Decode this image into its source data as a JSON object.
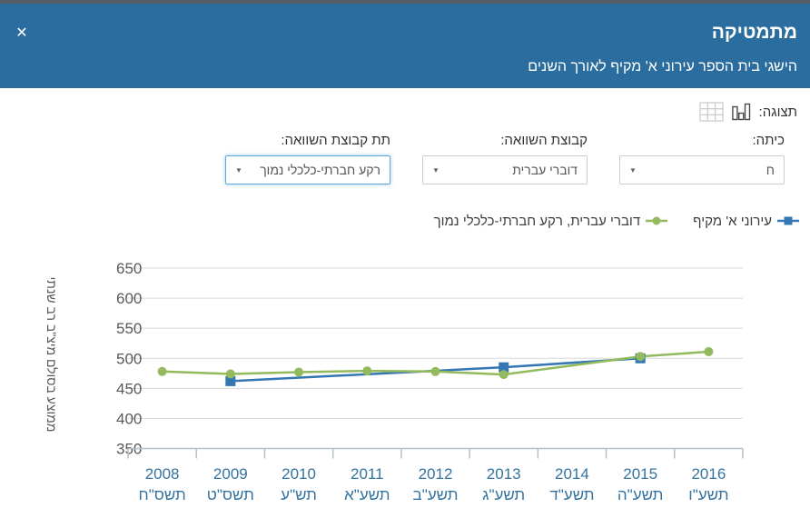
{
  "header": {
    "title": "מתמטיקה",
    "subtitle": "הישגי בית הספר עירוני א' מקיף לאורך השנים",
    "close_glyph": "✕",
    "bg_color": "#2a6d9e"
  },
  "toolbar": {
    "display_label": "תצוגה:"
  },
  "filters": [
    {
      "label": "כיתה:",
      "value": "ח",
      "arrow": "▼"
    },
    {
      "label": "קבוצת השוואה:",
      "value": "דוברי עברית",
      "arrow": "▼"
    },
    {
      "label": "תת קבוצת השוואה:",
      "value": "רקע חברתי-כלכלי נמוך",
      "arrow": "▼"
    }
  ],
  "legend": [
    {
      "label": "עירוני א' מקיף",
      "marker": "square",
      "color": "#3477b2"
    },
    {
      "label": "דוברי עברית, רקע חברתי-כלכלי נמוך",
      "marker": "circle",
      "color": "#94ba5e"
    }
  ],
  "chart_data": {
    "type": "line",
    "title": "",
    "ylabel": "ממוצע בסולם מיצ\"ב רב שנתי",
    "ylim": [
      350,
      650
    ],
    "yticks": [
      350,
      400,
      450,
      500,
      550,
      600,
      650
    ],
    "grid": true,
    "legend_position": "top-right",
    "categories_gregorian": [
      "2008",
      "2009",
      "2010",
      "2011",
      "2012",
      "2013",
      "2014",
      "2015",
      "2016"
    ],
    "categories_hebrew": [
      "תשס\"ח",
      "תשס\"ט",
      "תש\"ע",
      "תשע\"א",
      "תשע\"ב",
      "תשע\"ג",
      "תשע\"ד",
      "תשע\"ה",
      "תשע\"ו"
    ],
    "series": [
      {
        "name": "עירוני א' מקיף",
        "color": "#3477b2",
        "marker": "square",
        "values": [
          null,
          462,
          null,
          null,
          null,
          485,
          null,
          500,
          null
        ]
      },
      {
        "name": "דוברי עברית, רקע חברתי-כלכלי נמוך",
        "color": "#94ba5e",
        "marker": "circle",
        "values": [
          478,
          474,
          477,
          479,
          478,
          473,
          null,
          503,
          511
        ]
      }
    ],
    "axis_color": "#b3bfc9",
    "gridline_color": "#d8d8d8",
    "ytick_color": "#595959",
    "xtick_color": "#34749f"
  }
}
